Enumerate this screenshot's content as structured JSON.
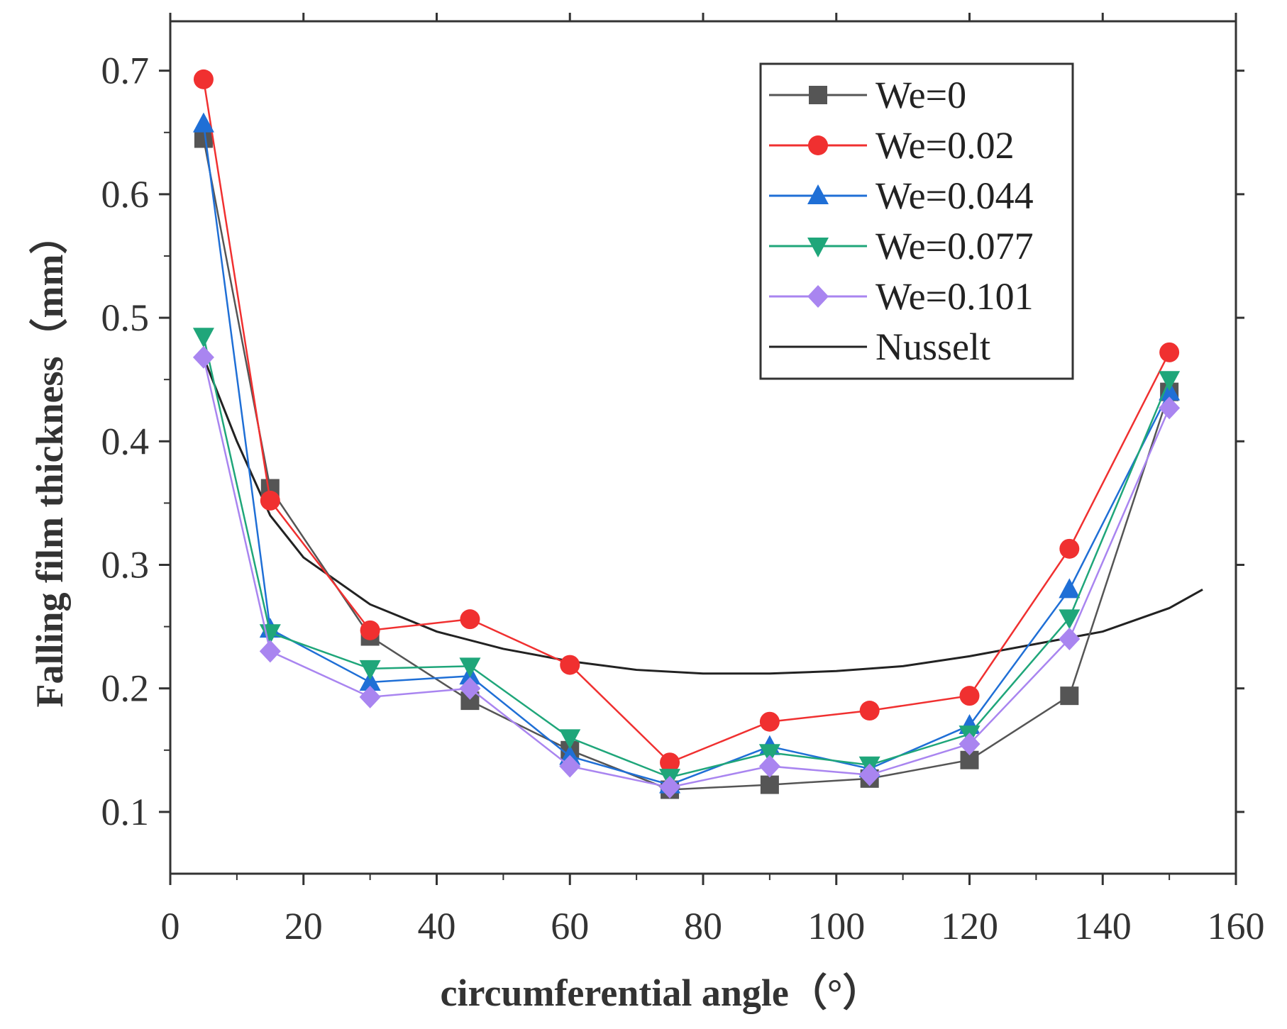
{
  "chart_data": {
    "type": "line",
    "title": "",
    "xlabel": "circumferential angle（°）",
    "ylabel": "Falling film thickness（mm）",
    "xlim": [
      0,
      160
    ],
    "ylim": [
      0.05,
      0.74
    ],
    "xticks": [
      0,
      20,
      40,
      60,
      80,
      100,
      120,
      140,
      160
    ],
    "xtick_labels": [
      "0",
      "20",
      "40",
      "60",
      "80",
      "100",
      "120",
      "140",
      "160"
    ],
    "yticks": [
      0.1,
      0.2,
      0.3,
      0.4,
      0.5,
      0.6,
      0.7
    ],
    "ytick_labels": [
      "0.1",
      "0.2",
      "0.3",
      "0.4",
      "0.5",
      "0.6",
      "0.7"
    ],
    "grid": false,
    "legend_position": "top-right",
    "x": [
      5,
      15,
      30,
      45,
      60,
      75,
      90,
      105,
      120,
      135,
      150
    ],
    "series": [
      {
        "name": "We=0",
        "color": "#555555",
        "marker": "square",
        "values": [
          0.645,
          0.362,
          0.242,
          0.19,
          0.15,
          0.118,
          0.122,
          0.127,
          0.142,
          0.194,
          0.44
        ]
      },
      {
        "name": "We=0.02",
        "color": "#f03030",
        "marker": "circle",
        "values": [
          0.693,
          0.352,
          0.247,
          0.256,
          0.219,
          0.14,
          0.173,
          0.182,
          0.194,
          0.313,
          0.472
        ]
      },
      {
        "name": "We=0.044",
        "color": "#1f6fd6",
        "marker": "triangle-up",
        "values": [
          0.657,
          0.248,
          0.205,
          0.21,
          0.145,
          0.122,
          0.153,
          0.135,
          0.17,
          0.28,
          0.44
        ]
      },
      {
        "name": "We=0.077",
        "color": "#1fa67a",
        "marker": "triangle-down",
        "values": [
          0.485,
          0.245,
          0.216,
          0.218,
          0.16,
          0.128,
          0.148,
          0.138,
          0.163,
          0.257,
          0.45
        ]
      },
      {
        "name": "We=0.101",
        "color": "#a985f0",
        "marker": "diamond",
        "values": [
          0.468,
          0.23,
          0.193,
          0.2,
          0.137,
          0.12,
          0.137,
          0.13,
          0.155,
          0.24,
          0.427
        ]
      }
    ],
    "reference_curve": {
      "name": "Nusselt",
      "color": "#222222",
      "x": [
        5,
        10,
        15,
        20,
        30,
        40,
        50,
        60,
        70,
        80,
        90,
        100,
        110,
        120,
        130,
        140,
        150,
        155
      ],
      "values": [
        0.468,
        0.4,
        0.34,
        0.306,
        0.268,
        0.246,
        0.232,
        0.222,
        0.215,
        0.212,
        0.212,
        0.214,
        0.218,
        0.226,
        0.236,
        0.246,
        0.265,
        0.28
      ]
    }
  }
}
